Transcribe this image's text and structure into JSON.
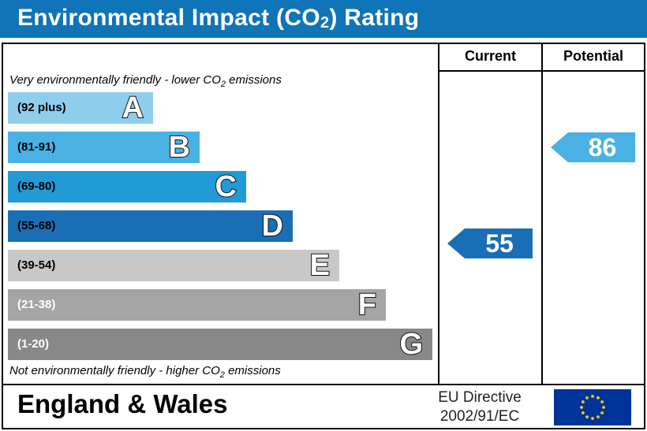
{
  "header": {
    "title_prefix": "Environmental Impact (CO",
    "title_sub": "2",
    "title_suffix": ") Rating"
  },
  "columns": {
    "current": "Current",
    "potential": "Potential"
  },
  "top_note": {
    "prefix": "Very environmentally friendly - lower CO",
    "sub": "2",
    "suffix": " emissions"
  },
  "bottom_note": {
    "prefix": "Not environmentally friendly - higher CO",
    "sub": "2",
    "suffix": " emissions"
  },
  "bands": [
    {
      "range": "(92 plus)",
      "letter": "A",
      "color": "#8fcdec",
      "text_color": "#000000"
    },
    {
      "range": "(81-91)",
      "letter": "B",
      "color": "#49b1e4",
      "text_color": "#000000"
    },
    {
      "range": "(69-80)",
      "letter": "C",
      "color": "#219ad6",
      "text_color": "#000000"
    },
    {
      "range": "(55-68)",
      "letter": "D",
      "color": "#1a6eb5",
      "text_color": "#000000"
    },
    {
      "range": "(39-54)",
      "letter": "E",
      "color": "#c8c8c8",
      "text_color": "#000000"
    },
    {
      "range": "(21-38)",
      "letter": "F",
      "color": "#a5a5a5",
      "text_color": "#ffffff"
    },
    {
      "range": "(1-20)",
      "letter": "G",
      "color": "#888888",
      "text_color": "#ffffff"
    }
  ],
  "current": {
    "value": "55",
    "band": "D",
    "color": "#1a6eb5"
  },
  "potential": {
    "value": "86",
    "band": "B",
    "color": "#49b1e4"
  },
  "footer": {
    "region": "England & Wales",
    "directive_line1": "EU Directive",
    "directive_line2": "2002/91/EC"
  },
  "colors": {
    "header": "#0f74b8",
    "eu_blue": "#003399",
    "eu_star": "#ffcc00"
  }
}
